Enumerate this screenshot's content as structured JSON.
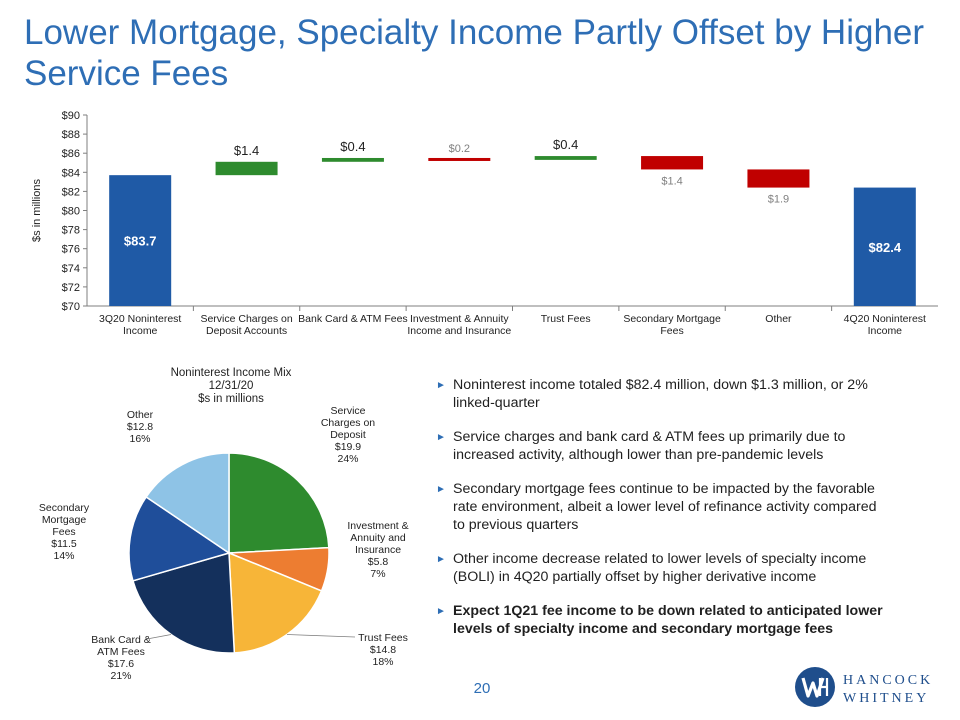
{
  "page": {
    "title": "Lower Mortgage, Specialty Income Partly Offset by Higher Service Fees",
    "page_number": "20",
    "logo_line1": "HANCOCK",
    "logo_line2": "WHITNEY"
  },
  "bullets": [
    {
      "text": "Noninterest income totaled $82.4 million, down $1.3 million, or 2% linked-quarter",
      "bold": false
    },
    {
      "text": "Service charges and bank card & ATM fees up primarily due to increased activity, although lower than pre-pandemic levels",
      "bold": false
    },
    {
      "text": "Secondary mortgage fees continue to be impacted by the favorable rate environment, albeit a lower level of refinance activity compared to previous quarters",
      "bold": false
    },
    {
      "text": "Other income decrease related to lower levels of specialty income (BOLI) in 4Q20 partially offset by higher derivative income",
      "bold": false
    },
    {
      "text": "Expect 1Q21 fee income to be down related to anticipated lower levels of specialty income and secondary mortgage fees",
      "bold": true
    }
  ],
  "chart_data": [
    {
      "type": "bar",
      "subtype": "waterfall",
      "ylabel": "$s in millions",
      "ylim": [
        70,
        90
      ],
      "yticks": [
        "$70",
        "$72",
        "$74",
        "$76",
        "$78",
        "$80",
        "$82",
        "$84",
        "$86",
        "$88",
        "$90"
      ],
      "grid": false,
      "categories": [
        [
          "3Q20 Noninterest",
          "Income"
        ],
        [
          "Service Charges on",
          "Deposit Accounts"
        ],
        [
          "Bank Card & ATM Fees"
        ],
        [
          "Investment & Annuity",
          "Income and Insurance"
        ],
        [
          "Trust Fees"
        ],
        [
          "Secondary Mortgage",
          "Fees"
        ],
        [
          "Other"
        ],
        [
          "4Q20 Noninterest",
          "Income"
        ]
      ],
      "bars": [
        {
          "kind": "total",
          "start": 70,
          "end": 83.7,
          "label": "$83.7"
        },
        {
          "kind": "increase",
          "start": 83.7,
          "end": 85.1,
          "label": "$1.4"
        },
        {
          "kind": "increase",
          "start": 85.1,
          "end": 85.5,
          "label": "$0.4"
        },
        {
          "kind": "decrease",
          "start": 85.5,
          "end": 85.3,
          "label": "$0.2"
        },
        {
          "kind": "increase",
          "start": 85.3,
          "end": 85.7,
          "label": "$0.4"
        },
        {
          "kind": "decrease",
          "start": 85.7,
          "end": 84.3,
          "label": "$1.4"
        },
        {
          "kind": "decrease",
          "start": 84.3,
          "end": 82.4,
          "label": "$1.9"
        },
        {
          "kind": "total",
          "start": 70,
          "end": 82.4,
          "label": "$82.4"
        }
      ],
      "colors": {
        "total": "#1f5aa6",
        "increase": "#2e8b2e",
        "decrease": "#c00000"
      }
    },
    {
      "type": "pie",
      "title": [
        "Noninterest Income Mix",
        "12/31/20",
        "$s in millions"
      ],
      "slices": [
        {
          "label": [
            "Service",
            "Charges on",
            "Deposit",
            "$19.9",
            "24%"
          ],
          "value": 19.9,
          "percent": 24,
          "color": "#2e8b2e"
        },
        {
          "label": [
            "Investment &",
            "Annuity and",
            "Insurance",
            "$5.8",
            "7%"
          ],
          "value": 5.8,
          "percent": 7,
          "color": "#ed7d31"
        },
        {
          "label": [
            "Trust Fees",
            "$14.8",
            "18%"
          ],
          "value": 14.8,
          "percent": 18,
          "color": "#f7b538"
        },
        {
          "label": [
            "Bank Card &",
            "ATM Fees",
            "$17.6",
            "21%"
          ],
          "value": 17.6,
          "percent": 21,
          "color": "#14305c"
        },
        {
          "label": [
            "Secondary",
            "Mortgage",
            "Fees",
            "$11.5",
            "14%"
          ],
          "value": 11.5,
          "percent": 14,
          "color": "#1f4e9a"
        },
        {
          "label": [
            "Other",
            "$12.8",
            "16%"
          ],
          "value": 12.8,
          "percent": 16,
          "color": "#8ec3e6"
        }
      ]
    }
  ]
}
